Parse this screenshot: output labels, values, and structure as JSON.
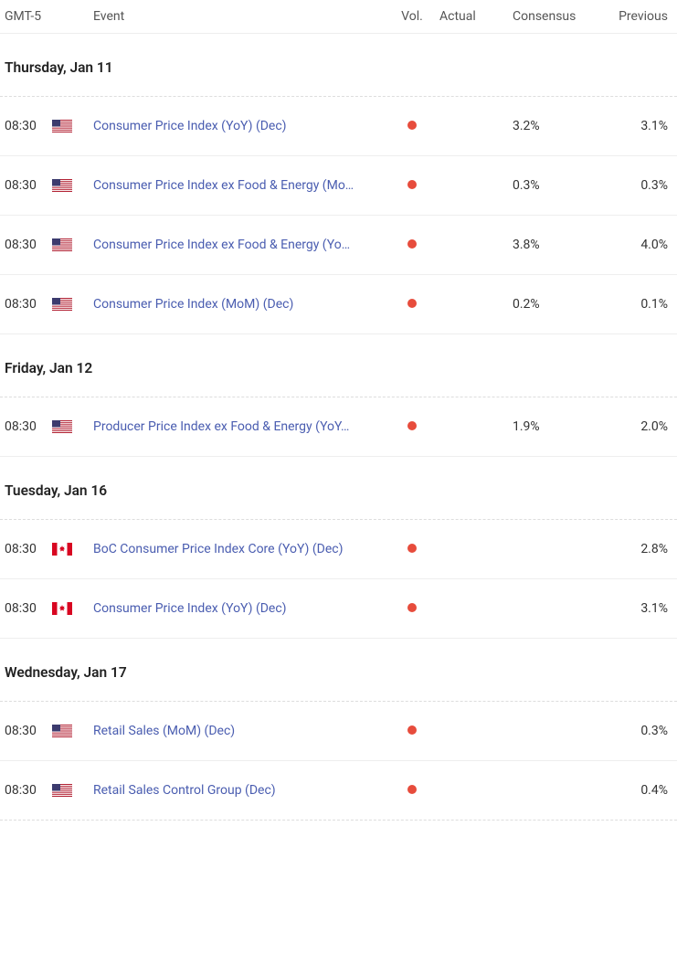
{
  "colors": {
    "link": "#4a5db0",
    "text": "#333333",
    "header_text": "#555555",
    "date_text": "#222222",
    "border": "#eeeeee",
    "dashed_border": "#dddddd",
    "vol_dot": "#e74c3c",
    "background": "#ffffff"
  },
  "headers": {
    "time": "GMT-5",
    "event": "Event",
    "vol": "Vol.",
    "actual": "Actual",
    "consensus": "Consensus",
    "previous": "Previous"
  },
  "groups": [
    {
      "date": "Thursday, Jan 11",
      "rows": [
        {
          "time": "08:30",
          "flag": "us",
          "event": "Consumer Price Index (YoY) (Dec)",
          "actual": "",
          "consensus": "3.2%",
          "previous": "3.1%"
        },
        {
          "time": "08:30",
          "flag": "us",
          "event": "Consumer Price Index ex Food & Energy (Mo…",
          "actual": "",
          "consensus": "0.3%",
          "previous": "0.3%"
        },
        {
          "time": "08:30",
          "flag": "us",
          "event": "Consumer Price Index ex Food & Energy (Yo…",
          "actual": "",
          "consensus": "3.8%",
          "previous": "4.0%"
        },
        {
          "time": "08:30",
          "flag": "us",
          "event": "Consumer Price Index (MoM) (Dec)",
          "actual": "",
          "consensus": "0.2%",
          "previous": "0.1%"
        }
      ]
    },
    {
      "date": "Friday, Jan 12",
      "rows": [
        {
          "time": "08:30",
          "flag": "us",
          "event": "Producer Price Index ex Food & Energy (YoY…",
          "actual": "",
          "consensus": "1.9%",
          "previous": "2.0%"
        }
      ]
    },
    {
      "date": "Tuesday, Jan 16",
      "rows": [
        {
          "time": "08:30",
          "flag": "ca",
          "event": "BoC Consumer Price Index Core (YoY) (Dec)",
          "actual": "",
          "consensus": "",
          "previous": "2.8%"
        },
        {
          "time": "08:30",
          "flag": "ca",
          "event": "Consumer Price Index (YoY) (Dec)",
          "actual": "",
          "consensus": "",
          "previous": "3.1%"
        }
      ]
    },
    {
      "date": "Wednesday, Jan 17",
      "rows": [
        {
          "time": "08:30",
          "flag": "us",
          "event": "Retail Sales (MoM) (Dec)",
          "actual": "",
          "consensus": "",
          "previous": "0.3%"
        },
        {
          "time": "08:30",
          "flag": "us",
          "event": "Retail Sales Control Group (Dec)",
          "actual": "",
          "consensus": "",
          "previous": "0.4%"
        }
      ]
    }
  ]
}
